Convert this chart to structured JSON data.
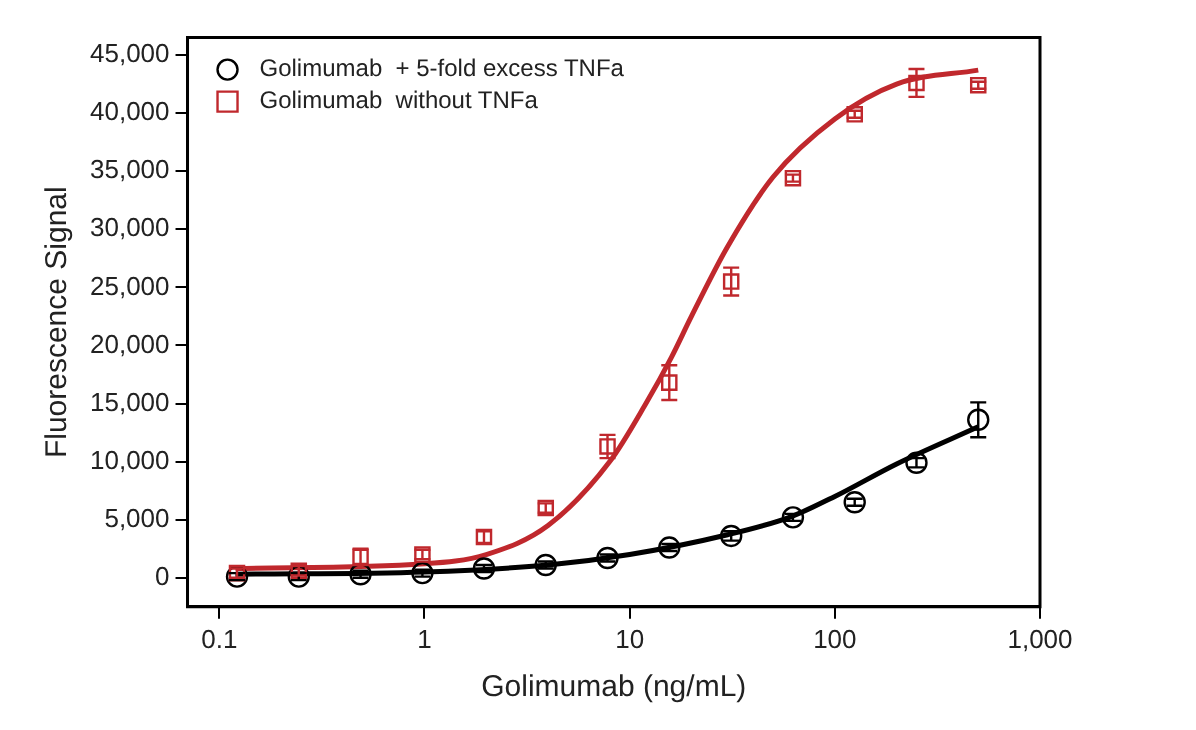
{
  "chart_data": {
    "type": "scatter",
    "xlabel": "Golimumab (ng/mL)",
    "ylabel": "Fluorescence Signal",
    "log": "x",
    "grid": false,
    "legend": "top left",
    "xlim": [
      0.07,
      1000
    ],
    "xticks": [
      0.1,
      1,
      10,
      100,
      {
        "value": 1000,
        "label": "1,000"
      }
    ],
    "ylim": [
      -2500,
      46500
    ],
    "yticks": [
      {
        "value": 0,
        "label": "0"
      },
      {
        "value": 5000,
        "label": "5,000"
      },
      {
        "value": 10000,
        "label": "10,000"
      },
      {
        "value": 15000,
        "label": "15,000"
      },
      {
        "value": 20000,
        "label": "20,000"
      },
      {
        "value": 25000,
        "label": "25,000"
      },
      {
        "value": 30000,
        "label": "30,000"
      },
      {
        "value": 35000,
        "label": "35,000"
      },
      {
        "value": 40000,
        "label": "40,000"
      },
      {
        "value": 45000,
        "label": "45,000"
      }
    ],
    "series": [
      {
        "name": "Golimumab  + 5-fold excess TNFa",
        "marker": "circle",
        "color": "#000000",
        "x": [
          0.122,
          0.244,
          0.488,
          0.977,
          1.95,
          3.9,
          7.8,
          15.6,
          31.25,
          62.5,
          125,
          250,
          500
        ],
        "values": [
          100,
          100,
          300,
          400,
          800,
          1100,
          1700,
          2600,
          3600,
          5200,
          6500,
          9900,
          13600
        ],
        "errors": [
          300,
          300,
          300,
          300,
          300,
          300,
          300,
          300,
          400,
          300,
          300,
          400,
          1500
        ]
      },
      {
        "name": "Golimumab  without TNFa",
        "marker": "square",
        "color": "#c0282d",
        "x": [
          0.122,
          0.244,
          0.488,
          0.977,
          1.95,
          3.9,
          7.8,
          15.6,
          31.25,
          62.5,
          125,
          250,
          500
        ],
        "values": [
          400,
          600,
          1800,
          2000,
          3500,
          6000,
          11300,
          16800,
          25500,
          34400,
          39900,
          42600,
          42400
        ],
        "errors": [
          400,
          400,
          700,
          400,
          500,
          400,
          1000,
          1500,
          1200,
          300,
          300,
          1200,
          300
        ]
      },
      {
        "type": "line",
        "marker": "none",
        "color": "#000000",
        "x": [
          0.12,
          1,
          4,
          10,
          30,
          60,
          100,
          200,
          500
        ],
        "values": [
          300,
          500,
          1100,
          2000,
          3700,
          5200,
          7000,
          9800,
          13000
        ]
      },
      {
        "type": "line",
        "marker": "none",
        "color": "#c0282d",
        "x": [
          0.12,
          1,
          2,
          4,
          8,
          12,
          16,
          20,
          30,
          50,
          100,
          200,
          500
        ],
        "values": [
          800,
          1200,
          2000,
          4500,
          10000,
          15000,
          19000,
          22500,
          28500,
          34500,
          39500,
          42500,
          43700
        ]
      }
    ]
  }
}
